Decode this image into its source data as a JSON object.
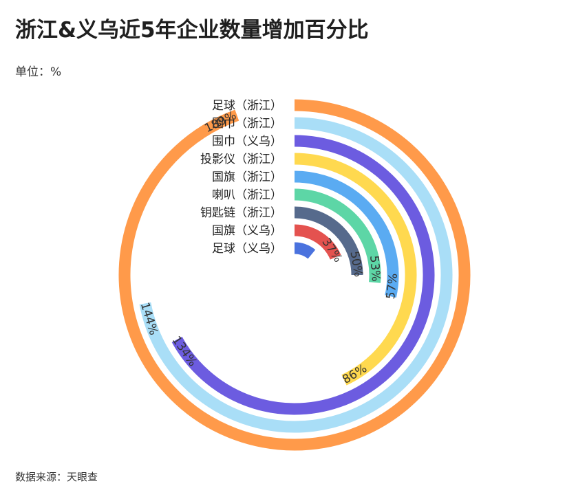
{
  "title": "浙江&义乌近5年企业数量增加百分比",
  "unit_label": "单位：%",
  "source": "数据来源：天眼查",
  "chart_data": {
    "type": "radial-bar",
    "title": "浙江&义乌近5年企业数量增加百分比",
    "unit": "%",
    "max_value": 200,
    "categories": [
      "足球（浙江）",
      "围巾（浙江）",
      "围巾（义乌）",
      "投影仪（浙江）",
      "国旗（浙江）",
      "喇叭（浙江）",
      "钥匙链（浙江）",
      "国旗（义乌）",
      "足球（义乌）"
    ],
    "values": [
      189,
      144,
      134,
      86,
      57,
      53,
      50,
      37,
      22
    ],
    "value_labels": [
      "189%",
      "144%",
      "134%",
      "86%",
      "57%",
      "53%",
      "50%",
      "37%",
      ""
    ],
    "colors": [
      "#FF9A4A",
      "#A9DEF7",
      "#6C5CE0",
      "#FFD94F",
      "#5AABF2",
      "#5DD6A6",
      "#566A8C",
      "#E4524F",
      "#4A72DE"
    ]
  }
}
